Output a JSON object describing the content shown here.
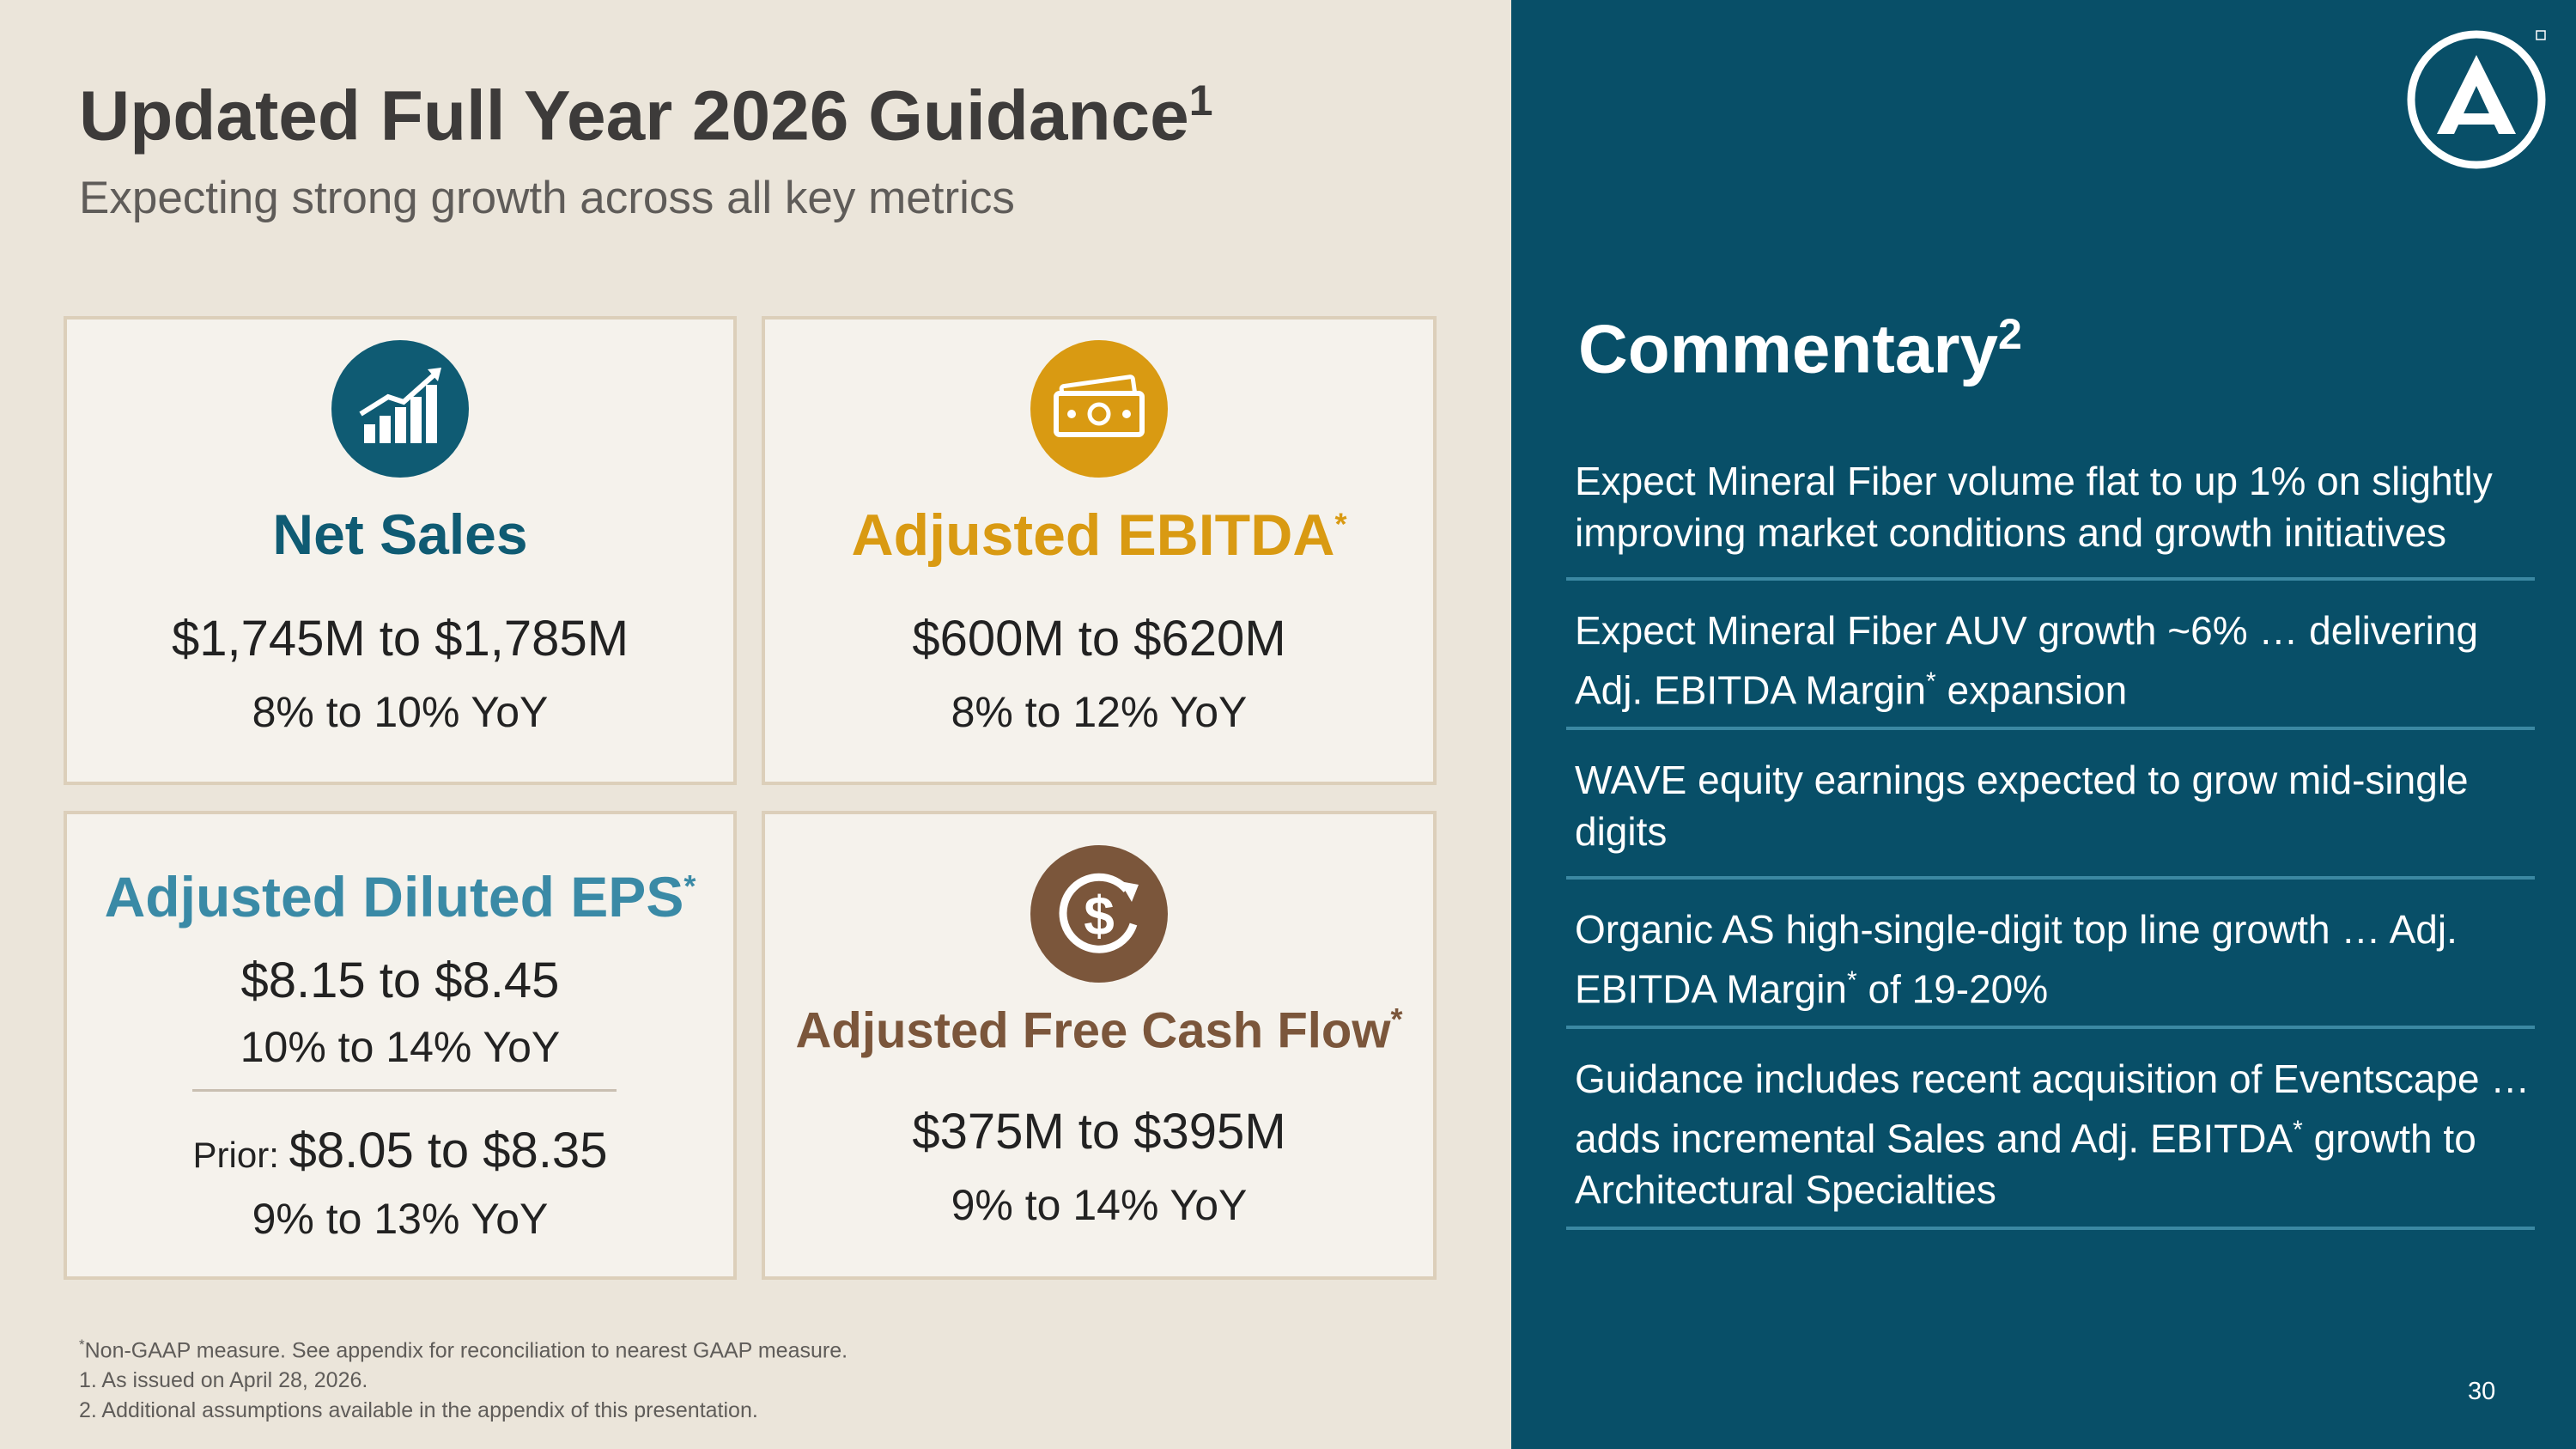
{
  "header": {
    "title": "Updated Full Year 2026 Guidance",
    "title_sup": "1",
    "subtitle": "Expecting strong growth across all key metrics"
  },
  "colors": {
    "left_bg": "#ebe5da",
    "right_bg": "#084f68",
    "net_sales": "#0f5b73",
    "ebitda": "#d99a12",
    "eps": "#3a8aa6",
    "fcf": "#7b563b"
  },
  "cards": {
    "net_sales": {
      "icon": "bar-chart-growth-icon",
      "title": "Net Sales",
      "value": "$1,745M to $1,785M",
      "yoy": "8% to 10% YoY"
    },
    "ebitda": {
      "icon": "cash-bill-icon",
      "title": "Adjusted EBITDA",
      "title_sup": "*",
      "value": "$600M to $620M",
      "yoy": "8% to 12% YoY"
    },
    "eps": {
      "title": "Adjusted Diluted EPS",
      "title_sup": "*",
      "value": "$8.15 to $8.45",
      "yoy": "10% to 14% YoY",
      "prior_label": "Prior: ",
      "prior_value": "$8.05 to $8.35",
      "prior_yoy": "9% to 13% YoY"
    },
    "fcf": {
      "icon": "dollar-cycle-icon",
      "title": "Adjusted Free Cash Flow",
      "title_sup": "*",
      "value": "$375M to $395M",
      "yoy": "9% to 14% YoY"
    }
  },
  "footnotes": {
    "star": "*",
    "non_gaap": "Non-GAAP measure. See appendix for reconciliation to nearest GAAP measure.",
    "note1": "1.  As issued on April 28, 2026.",
    "note2": "2.  Additional assumptions available in the appendix of this presentation."
  },
  "commentary": {
    "logo": "armstrong-a-logo-icon",
    "title": "Commentary",
    "title_sup": "2",
    "items": [
      {
        "text": "Expect Mineral Fiber volume flat to up 1% on slightly improving market conditions and growth initiatives"
      },
      {
        "pre": "Expect Mineral Fiber AUV growth ~6% … delivering Adj. EBITDA Margin",
        "sup": "*",
        "post": " expansion"
      },
      {
        "text": "WAVE equity earnings expected to grow mid-single digits"
      },
      {
        "pre": "Organic AS high-single-digit top line growth … Adj. EBITDA Margin",
        "sup": "*",
        "post": " of 19-20%"
      },
      {
        "pre": "Guidance includes recent acquisition of Eventscape … adds incremental Sales and Adj. EBITDA",
        "sup": "*",
        "post": " growth to Architectural Specialties"
      }
    ]
  },
  "page_number": "30"
}
